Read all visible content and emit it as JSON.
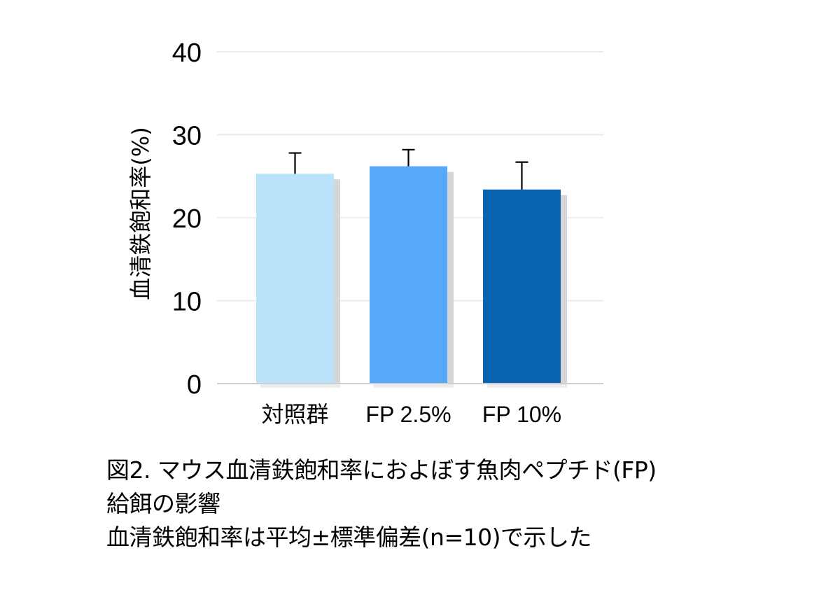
{
  "chart_data": {
    "type": "bar",
    "title": "",
    "xlabel": "",
    "ylabel": "血清鉄飽和率(%)",
    "ylim": [
      0,
      40
    ],
    "yticks": [
      0,
      10,
      20,
      30,
      40
    ],
    "grid": true,
    "legend": null,
    "categories": [
      "対照群",
      "FP 2.5%",
      "FP 10%"
    ],
    "values": [
      25.3,
      26.2,
      23.4
    ],
    "error_sd": [
      2.5,
      2.0,
      3.3
    ],
    "colors": [
      "#b9e2fb",
      "#56a8fb",
      "#0962b2"
    ]
  },
  "caption": {
    "line1": "図2. マウス血清鉄飽和率におよぼす魚肉ペプチド(FP)",
    "line2": "給餌の影響",
    "line3": "血清鉄飽和率は平均±標準偏差(n=10)で示した"
  },
  "style": {
    "grid_color": "#e6e6e6",
    "axis_color": "#cfcfcf",
    "shadow_color": "#d6d6d6",
    "errorbar_color": "#000000"
  }
}
